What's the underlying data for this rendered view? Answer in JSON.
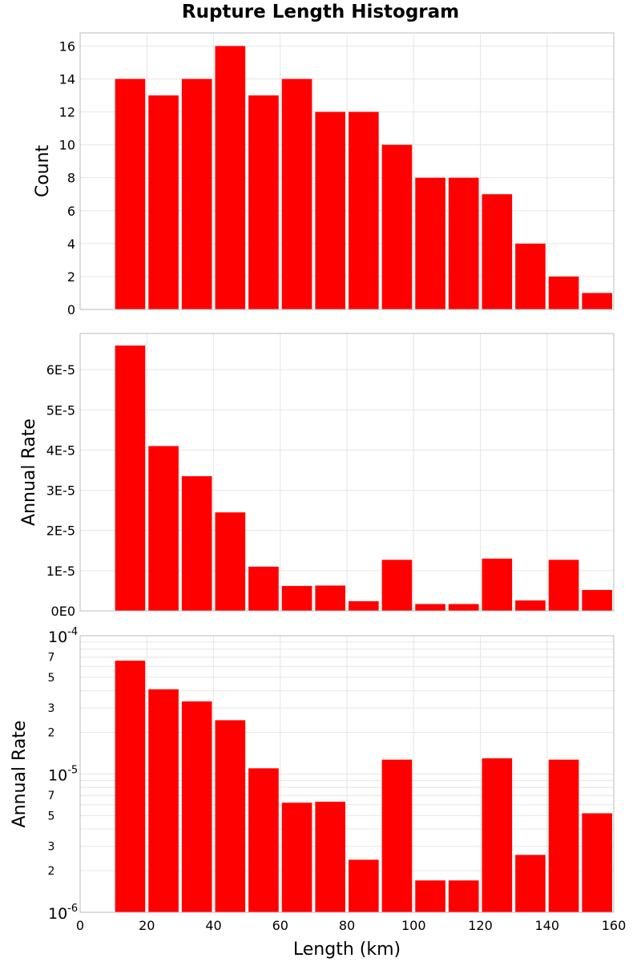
{
  "chart_data": [
    {
      "type": "bar",
      "title": "Rupture Length Histogram",
      "xlabel": "Length (km)",
      "ylabel": "Count",
      "xlim": [
        0,
        160
      ],
      "ylim": [
        0,
        16.8
      ],
      "grid": true,
      "bar_color": "#ff0000",
      "x": [
        15,
        25,
        35,
        45,
        55,
        65,
        75,
        85,
        95,
        105,
        115,
        125,
        135,
        145,
        155
      ],
      "values": [
        14,
        13,
        14,
        16,
        13,
        14,
        12,
        12,
        10,
        8,
        8,
        7,
        4,
        2,
        1
      ],
      "y_ticks": [
        0,
        2,
        4,
        6,
        8,
        10,
        12,
        14,
        16
      ],
      "y_tick_labels": [
        "0",
        "2",
        "4",
        "6",
        "8",
        "10",
        "12",
        "14",
        "16"
      ]
    },
    {
      "type": "bar",
      "xlabel": "Length (km)",
      "ylabel": "Annual Rate",
      "xlim": [
        0,
        160
      ],
      "ylim": [
        0,
        6.9e-05
      ],
      "grid": true,
      "bar_color": "#ff0000",
      "x": [
        15,
        25,
        35,
        45,
        55,
        65,
        75,
        85,
        95,
        105,
        115,
        125,
        135,
        145,
        155
      ],
      "values": [
        6.6e-05,
        4.1e-05,
        3.35e-05,
        2.45e-05,
        1.1e-05,
        6.2e-06,
        6.3e-06,
        2.4e-06,
        1.27e-05,
        1.7e-06,
        1.7e-06,
        1.3e-05,
        2.6e-06,
        1.27e-05,
        5.2e-06
      ],
      "y_ticks": [
        0,
        1e-05,
        2e-05,
        3e-05,
        4e-05,
        5e-05,
        6e-05
      ],
      "y_tick_labels": [
        "0E0",
        "1E-5",
        "2E-5",
        "3E-5",
        "4E-5",
        "5E-5",
        "6E-5"
      ]
    },
    {
      "type": "bar",
      "xlabel": "Length (km)",
      "ylabel": "Annual Rate",
      "xlim": [
        0,
        160
      ],
      "ylim": [
        1e-06,
        0.0001
      ],
      "y_scale": "log",
      "grid": true,
      "bar_color": "#ff0000",
      "x": [
        15,
        25,
        35,
        45,
        55,
        65,
        75,
        85,
        95,
        105,
        115,
        125,
        135,
        145,
        155
      ],
      "values": [
        6.6e-05,
        4.1e-05,
        3.35e-05,
        2.45e-05,
        1.1e-05,
        6.2e-06,
        6.3e-06,
        2.4e-06,
        1.27e-05,
        1.7e-06,
        1.7e-06,
        1.3e-05,
        2.6e-06,
        1.27e-05,
        5.2e-06
      ],
      "y_major_ticks": [
        1e-06,
        1e-05,
        0.0001
      ],
      "y_major_labels": [
        {
          "base": "10",
          "exp": "-6"
        },
        {
          "base": "10",
          "exp": "-5"
        },
        {
          "base": "10",
          "exp": "-4"
        }
      ],
      "y_minor_ticks": [
        2e-06,
        3e-06,
        5e-06,
        7e-06,
        2e-05,
        3e-05,
        5e-05,
        7e-05
      ],
      "y_minor_labels": [
        "2",
        "3",
        "5",
        "7",
        "2",
        "3",
        "5",
        "7"
      ],
      "x_ticks": [
        0,
        20,
        40,
        60,
        80,
        100,
        120,
        140,
        160
      ],
      "x_tick_labels": [
        "0",
        "20",
        "40",
        "60",
        "80",
        "100",
        "120",
        "140",
        "160"
      ]
    }
  ]
}
